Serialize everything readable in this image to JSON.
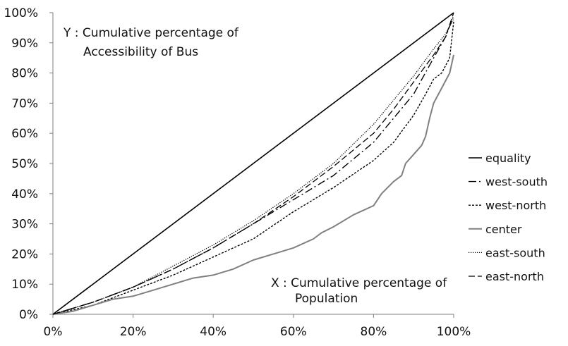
{
  "chart_data": {
    "type": "line",
    "xlim": [
      0,
      100
    ],
    "ylim": [
      0,
      100
    ],
    "x_ticks": [
      "0%",
      "20%",
      "40%",
      "60%",
      "80%",
      "100%"
    ],
    "y_ticks": [
      "0%",
      "10%",
      "20%",
      "30%",
      "40%",
      "50%",
      "60%",
      "70%",
      "80%",
      "90%",
      "100%"
    ],
    "grid": false,
    "legend_position": "right",
    "annotations": {
      "y_text_line1": "Y : Cumulative percentage of",
      "y_text_line2": "Accessibility of Bus",
      "x_text_line1": "X : Cumulative percentage of",
      "x_text_line2": "Population"
    },
    "series": [
      {
        "name": "equality",
        "color": "#000000",
        "dash": "solid",
        "width": 1.6,
        "x": [
          0,
          100
        ],
        "y": [
          0,
          100
        ]
      },
      {
        "name": "west-south",
        "color": "#000000",
        "dash": "dashdot",
        "width": 1.4,
        "x": [
          0,
          10,
          20,
          30,
          40,
          50,
          60,
          70,
          80,
          90,
          95,
          98,
          100
        ],
        "y": [
          0,
          4,
          9,
          15,
          22,
          30,
          38,
          46,
          57,
          73,
          85,
          92,
          99
        ]
      },
      {
        "name": "west-north",
        "color": "#000000",
        "dash": "dotted-short",
        "width": 1.4,
        "x": [
          0,
          10,
          20,
          30,
          40,
          50,
          60,
          70,
          80,
          85,
          90,
          93,
          95,
          97,
          99,
          100
        ],
        "y": [
          0,
          3,
          8,
          13,
          19,
          25,
          34,
          42,
          51,
          57,
          66,
          73,
          78,
          80,
          85,
          97
        ]
      },
      {
        "name": "center",
        "color": "#808080",
        "dash": "solid",
        "width": 2,
        "x": [
          0,
          5,
          10,
          15,
          20,
          25,
          30,
          35,
          40,
          45,
          50,
          55,
          60,
          65,
          67,
          70,
          75,
          80,
          82,
          85,
          87,
          88,
          90,
          92,
          93,
          94,
          95,
          97,
          99,
          100
        ],
        "y": [
          0,
          1,
          3,
          5,
          6,
          8,
          10,
          12,
          13,
          15,
          18,
          20,
          22,
          25,
          27,
          29,
          33,
          36,
          40,
          44,
          46,
          50,
          53,
          56,
          59,
          65,
          70,
          75,
          80,
          86
        ]
      },
      {
        "name": "east-south",
        "color": "#000000",
        "dash": "dotted",
        "width": 1.3,
        "x": [
          0,
          10,
          20,
          30,
          40,
          50,
          60,
          70,
          80,
          85,
          90,
          95,
          98,
          100
        ],
        "y": [
          0,
          4,
          9,
          16,
          23,
          31,
          40,
          50,
          63,
          71,
          79,
          88,
          93,
          98
        ]
      },
      {
        "name": "east-north",
        "color": "#000000",
        "dash": "longdash",
        "width": 1.3,
        "x": [
          0,
          10,
          20,
          30,
          40,
          50,
          60,
          70,
          80,
          85,
          90,
          95,
          98,
          100
        ],
        "y": [
          0,
          4,
          9,
          15,
          22,
          30,
          39,
          49,
          60,
          68,
          77,
          86,
          92,
          100
        ]
      }
    ]
  }
}
